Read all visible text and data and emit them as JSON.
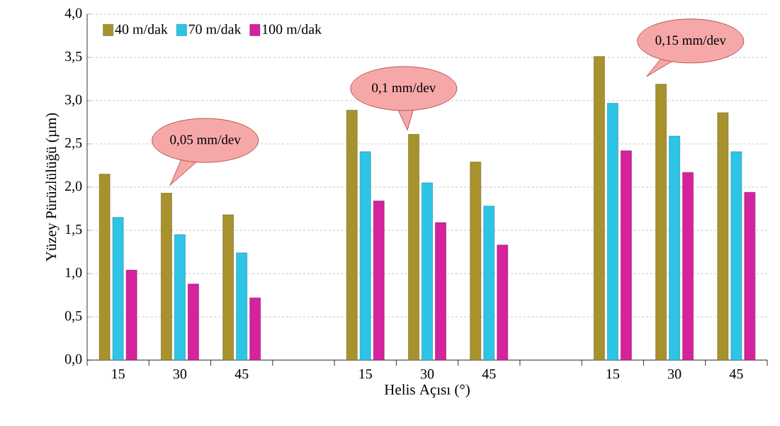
{
  "chart_data": {
    "type": "bar",
    "xlabel": "Helis Açısı (°)",
    "ylabel": "Yüzey Pürüzlülüğü (µm)",
    "categories": [
      "15",
      "30",
      "45",
      null,
      "15",
      "30",
      "45",
      null,
      "15",
      "30",
      "45"
    ],
    "series": [
      {
        "name": "40 m/dak",
        "color": "#a8922e",
        "values": [
          2.15,
          1.93,
          1.68,
          null,
          2.89,
          2.61,
          2.29,
          null,
          3.51,
          3.19,
          2.86
        ]
      },
      {
        "name": "70 m/dak",
        "color": "#2ec4e6",
        "values": [
          1.65,
          1.45,
          1.24,
          null,
          2.41,
          2.05,
          1.78,
          null,
          2.97,
          2.59,
          2.41
        ]
      },
      {
        "name": "100 m/dak",
        "color": "#d4239c",
        "values": [
          1.04,
          0.88,
          0.72,
          null,
          1.84,
          1.59,
          1.33,
          null,
          2.42,
          2.17,
          1.94
        ]
      }
    ],
    "ylim": [
      0,
      4
    ],
    "yticks": [
      {
        "value": 0,
        "label": "0,0"
      },
      {
        "value": 0.5,
        "label": "0,5"
      },
      {
        "value": 1,
        "label": "1,0"
      },
      {
        "value": 1.5,
        "label": "1,5"
      },
      {
        "value": 2,
        "label": "2,0"
      },
      {
        "value": 2.5,
        "label": "2,5"
      },
      {
        "value": 3,
        "label": "3,0"
      },
      {
        "value": 3.5,
        "label": "3,5"
      },
      {
        "value": 4,
        "label": "4,0"
      }
    ],
    "annotations": [
      "0,05 mm/dev",
      "0,1 mm/dev",
      "0,15 mm/dev"
    ],
    "grid": "y",
    "legend": "top left"
  }
}
